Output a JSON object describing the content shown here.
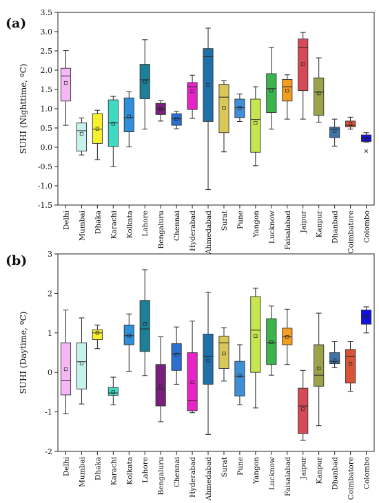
{
  "chart_data": [
    {
      "panel_label": "(a)",
      "type": "box",
      "ylabel": "SUHI (Nighttime, ºC)",
      "ylim": [
        -1.5,
        3.5
      ],
      "yticks": [
        -1.5,
        -1.0,
        -0.5,
        0.0,
        0.5,
        1.0,
        1.5,
        2.0,
        2.5,
        3.0,
        3.5
      ],
      "ytick_labels": [
        "-1.5",
        "-1.0",
        "-0.5",
        "0.0",
        "0.5",
        "1.0",
        "1.5",
        "2.0",
        "2.5",
        "3.0",
        "3.5"
      ],
      "grid": false,
      "categories": [
        "Delhi",
        "Mumbai",
        "Dhaka",
        "Karachi",
        "Kolkata",
        "Lahore",
        "Bengaluru",
        "Chennai",
        "Hyderabad",
        "Ahmedabad",
        "Surat",
        "Pune",
        "Yangon",
        "Lucknow",
        "Faisalabad",
        "Jaipur",
        "Kanpur",
        "Dhanbad",
        "Coimbatore",
        "Colombo"
      ],
      "colors": [
        "#f5b8f5",
        "#c6f2ec",
        "#f7f12c",
        "#40d9c1",
        "#2f8fd8",
        "#1d8096",
        "#7a1f7d",
        "#2a6fd1",
        "#e824c9",
        "#1f6fa8",
        "#d9c857",
        "#3f8ed8",
        "#c7e54e",
        "#3cb44d",
        "#f29e22",
        "#d64a58",
        "#9aa34a",
        "#3e74a7",
        "#d95336",
        "#1111e3"
      ],
      "whisker_low": [
        0.57,
        -0.2,
        -0.32,
        -0.5,
        0.01,
        0.47,
        0.68,
        0.48,
        0.75,
        -1.1,
        -0.12,
        0.67,
        -0.48,
        0.47,
        0.73,
        0.73,
        0.65,
        0.03,
        0.47,
        0.13
      ],
      "q1": [
        1.2,
        -0.1,
        0.1,
        0.02,
        0.4,
        1.26,
        0.85,
        0.57,
        0.98,
        0.67,
        0.38,
        0.77,
        -0.13,
        0.9,
        1.2,
        1.47,
        0.83,
        0.25,
        0.53,
        0.15
      ],
      "median": [
        1.85,
        0.43,
        0.47,
        0.63,
        0.77,
        1.75,
        1.0,
        0.74,
        1.57,
        2.35,
        1.3,
        1.03,
        0.72,
        1.52,
        1.57,
        2.58,
        1.43,
        0.47,
        0.57,
        0.23
      ],
      "q3": [
        2.05,
        0.63,
        0.87,
        1.23,
        1.28,
        2.15,
        1.14,
        0.87,
        1.68,
        2.56,
        1.63,
        1.25,
        1.25,
        1.91,
        1.76,
        2.81,
        1.8,
        0.52,
        0.68,
        0.32
      ],
      "whisker_high": [
        2.51,
        0.76,
        0.96,
        1.32,
        1.44,
        2.79,
        1.21,
        0.93,
        1.87,
        3.09,
        1.73,
        1.38,
        1.57,
        2.59,
        1.88,
        2.98,
        2.32,
        0.73,
        0.78,
        0.38
      ],
      "mean": [
        1.67,
        0.35,
        0.48,
        0.61,
        0.8,
        1.7,
        0.99,
        0.73,
        1.45,
        1.62,
        1.02,
        1.02,
        0.63,
        1.47,
        1.47,
        2.16,
        1.4,
        0.43,
        0.6,
        0.22
      ],
      "outliers": [
        {
          "category": "Colombo",
          "value": -0.1
        }
      ]
    },
    {
      "panel_label": "(b)",
      "type": "box",
      "ylabel": "SUHI (Daytime, ºC)",
      "ylim": [
        -2,
        3
      ],
      "yticks": [
        -2,
        -1,
        0,
        1,
        2,
        3
      ],
      "ytick_labels": [
        "-2",
        "-1",
        "0",
        "1",
        "2",
        "3"
      ],
      "grid": false,
      "categories": [
        "Delhi",
        "Mumbai",
        "Dhaka",
        "Karachi",
        "Kolkata",
        "Lahore",
        "Bengaluru",
        "Chennai",
        "Hyderabad",
        "Ahmedabad",
        "Surat",
        "Pune",
        "Yangon",
        "Lucknow",
        "Faisalabad",
        "Jaipur",
        "Kanpur",
        "Dhanbad",
        "Coimbatore",
        "Colombo"
      ],
      "colors": [
        "#f5b8f5",
        "#c6f2ec",
        "#f7f12c",
        "#40d9c1",
        "#2f8fd8",
        "#1d8096",
        "#7a1f7d",
        "#2a6fd1",
        "#e824c9",
        "#1f6fa8",
        "#d9c857",
        "#3f8ed8",
        "#c7e54e",
        "#3cb44d",
        "#f29e22",
        "#d64a58",
        "#9aa34a",
        "#3e74a7",
        "#d95336",
        "#1111e3"
      ],
      "whisker_low": [
        -1.05,
        -0.8,
        0.6,
        -0.82,
        0.03,
        -0.08,
        -1.25,
        -0.3,
        -1.02,
        -1.57,
        -0.22,
        -0.82,
        -0.9,
        -0.07,
        0.2,
        -1.72,
        -1.35,
        0.12,
        -0.48,
        1.0
      ],
      "q1": [
        -0.57,
        -0.42,
        0.83,
        -0.58,
        0.7,
        0.53,
        -0.85,
        0.05,
        -0.97,
        -0.3,
        0.1,
        -0.6,
        0.0,
        0.2,
        0.7,
        -1.55,
        -0.35,
        0.22,
        -0.27,
        1.22
      ],
      "median": [
        -0.2,
        0.27,
        1.0,
        -0.52,
        0.93,
        1.1,
        -0.42,
        0.47,
        -0.72,
        0.4,
        0.75,
        -0.1,
        1.07,
        0.75,
        0.9,
        -0.85,
        -0.07,
        0.28,
        0.4,
        1.42
      ],
      "q3": [
        0.75,
        0.75,
        1.08,
        -0.38,
        1.2,
        1.82,
        0.2,
        0.73,
        0.5,
        0.97,
        0.92,
        0.28,
        1.92,
        1.36,
        1.12,
        -0.4,
        0.7,
        0.5,
        0.58,
        1.58
      ],
      "whisker_high": [
        1.58,
        1.38,
        1.2,
        -0.12,
        1.48,
        2.6,
        0.9,
        1.15,
        1.3,
        2.03,
        1.13,
        0.7,
        2.13,
        1.68,
        1.6,
        0.05,
        1.5,
        0.78,
        0.78,
        1.66
      ],
      "mean": [
        0.08,
        0.23,
        1.0,
        -0.5,
        0.93,
        1.23,
        -0.35,
        0.45,
        -0.25,
        0.3,
        0.48,
        -0.08,
        0.92,
        0.77,
        0.9,
        -0.93,
        0.1,
        0.3,
        0.22,
        1.4
      ],
      "outliers": []
    }
  ]
}
